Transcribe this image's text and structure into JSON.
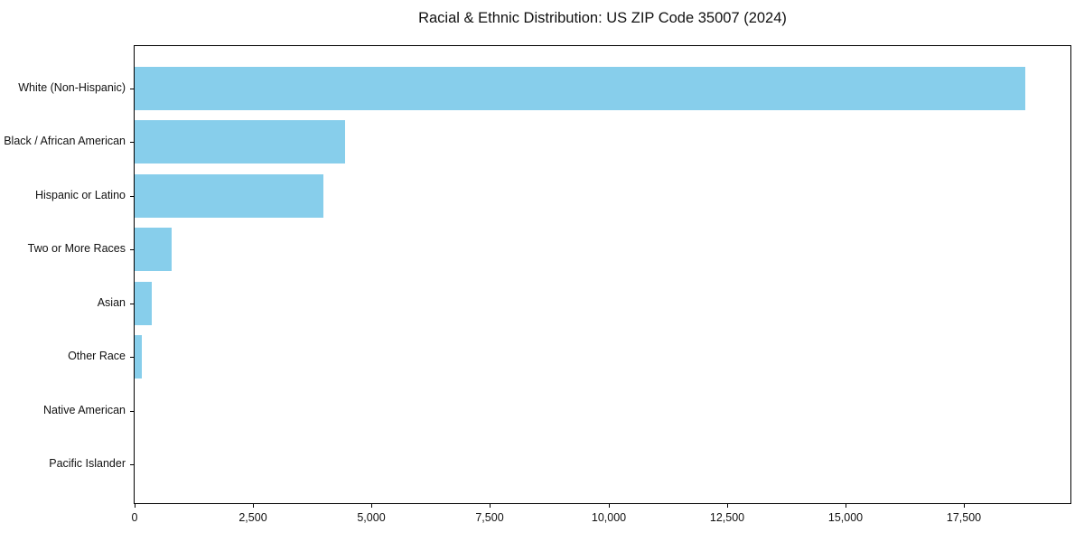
{
  "figure": {
    "background": "#ffffff",
    "frame_color": "#000000",
    "text_color": "#111111"
  },
  "chart_data": {
    "type": "bar",
    "orientation": "horizontal",
    "title": "Racial & Ethnic Distribution: US ZIP Code 35007 (2024)",
    "categories": [
      "White (Non-Hispanic)",
      "Black / African American",
      "Hispanic or Latino",
      "Two or More Races",
      "Asian",
      "Other Race",
      "Native American",
      "Pacific Islander"
    ],
    "values": [
      18800,
      4440,
      3980,
      790,
      360,
      150,
      0,
      0
    ],
    "bar_color": "#87CEEB",
    "xlabel": "",
    "ylabel": "",
    "xlim": [
      0,
      19750
    ],
    "x_ticks": [
      0,
      2500,
      5000,
      7500,
      10000,
      12500,
      15000,
      17500
    ],
    "x_tick_labels": [
      "0",
      "2,500",
      "5,000",
      "7,500",
      "10,000",
      "12,500",
      "15,000",
      "17,500"
    ],
    "grid": false,
    "legend": "none",
    "frame": "full-box"
  }
}
